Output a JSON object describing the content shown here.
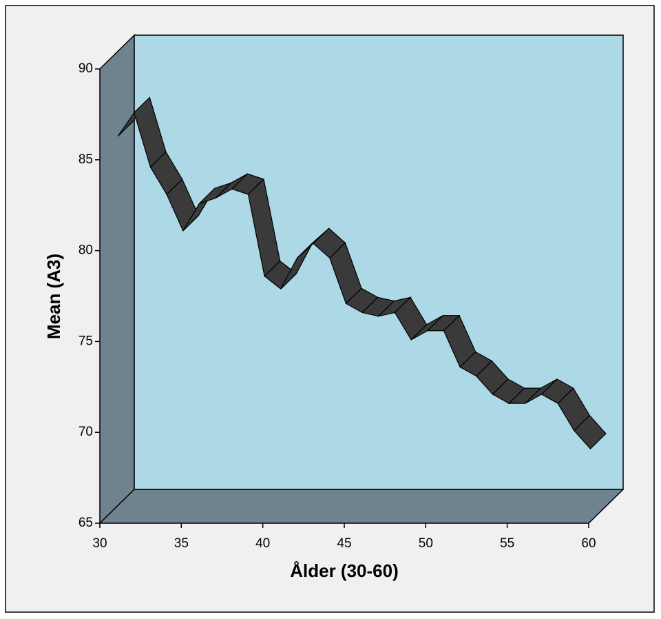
{
  "chart_data": {
    "type": "ribbon3d",
    "x_label": "Ålder (30-60)",
    "y_label": "Mean (A3)",
    "x": [
      31,
      32,
      33,
      34,
      35,
      36,
      37,
      38,
      39,
      40,
      41,
      42,
      43,
      44,
      45,
      46,
      47,
      48,
      49,
      50,
      51,
      52,
      53,
      54,
      55,
      56,
      57,
      58,
      59,
      60
    ],
    "series": [
      {
        "name": "Mean (A3)",
        "color": "#3a3a3a",
        "values": [
          86.2,
          87.5,
          84.5,
          83,
          81,
          82.5,
          82.8,
          83.3,
          83,
          78.5,
          77.8,
          79.5,
          80.3,
          79.5,
          77,
          76.5,
          76.3,
          76.5,
          75,
          75.5,
          75.5,
          73.5,
          73,
          72,
          71.5,
          71.5,
          72,
          71.5,
          70,
          69
        ]
      }
    ],
    "xlim": [
      30,
      60
    ],
    "ylim": [
      65,
      90
    ],
    "xticks": [
      30,
      35,
      40,
      45,
      50,
      55,
      60
    ],
    "yticks": [
      65,
      70,
      75,
      80,
      85,
      90
    ]
  }
}
